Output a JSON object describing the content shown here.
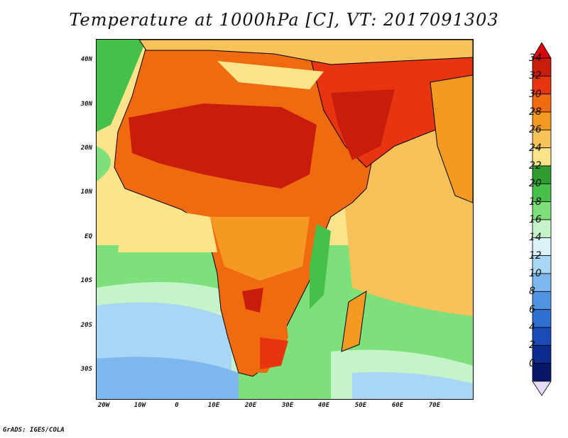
{
  "title": "Temperature at 1000hPa [C], VT: 2017091303",
  "footer": "GrADS: IGES/COLA",
  "axes": {
    "lat_ticks": [
      "40N",
      "30N",
      "20N",
      "10N",
      "EQ",
      "10S",
      "20S",
      "30S"
    ],
    "lon_ticks": [
      "20W",
      "10W",
      "0",
      "10E",
      "20E",
      "30E",
      "40E",
      "50E",
      "60E",
      "70E"
    ]
  },
  "colorbar": {
    "labels": [
      "34",
      "32",
      "30",
      "28",
      "26",
      "24",
      "22",
      "20",
      "18",
      "16",
      "14",
      "12",
      "10",
      "8",
      "6",
      "4",
      "2",
      "0"
    ],
    "colors": [
      "#c81d0d",
      "#e8340f",
      "#f06a10",
      "#f49a22",
      "#f7c25a",
      "#fde38a",
      "#2e9c2e",
      "#46c04a",
      "#7ee07a",
      "#c4f4c8",
      "#dbf2fa",
      "#a8d6f4",
      "#7cb8ee",
      "#4f94e2",
      "#2f6fd0",
      "#1b4bb6",
      "#0e2c90",
      "#081868"
    ],
    "arrow_top": "#d8000d",
    "arrow_bottom": "#e8dcf8"
  }
}
